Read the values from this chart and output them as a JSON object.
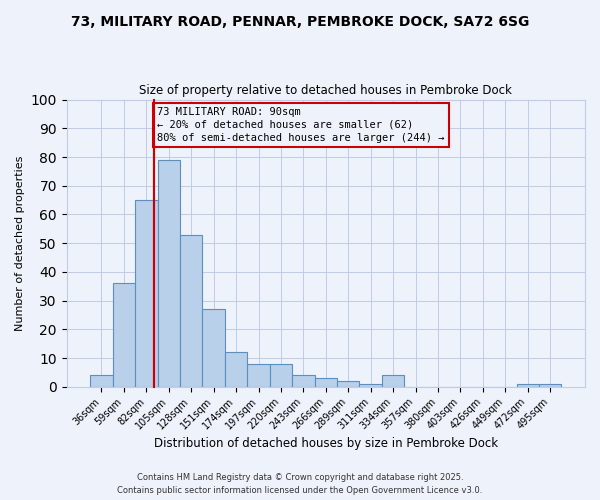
{
  "title1": "73, MILITARY ROAD, PENNAR, PEMBROKE DOCK, SA72 6SG",
  "title2": "Size of property relative to detached houses in Pembroke Dock",
  "xlabel": "Distribution of detached houses by size in Pembroke Dock",
  "ylabel": "Number of detached properties",
  "footer": "Contains HM Land Registry data © Crown copyright and database right 2025.\nContains public sector information licensed under the Open Government Licence v3.0.",
  "categories": [
    "36sqm",
    "59sqm",
    "82sqm",
    "105sqm",
    "128sqm",
    "151sqm",
    "174sqm",
    "197sqm",
    "220sqm",
    "243sqm",
    "266sqm",
    "289sqm",
    "311sqm",
    "334sqm",
    "357sqm",
    "380sqm",
    "403sqm",
    "426sqm",
    "449sqm",
    "472sqm",
    "495sqm"
  ],
  "values": [
    4,
    36,
    65,
    79,
    53,
    27,
    12,
    8,
    8,
    4,
    3,
    2,
    1,
    4,
    0,
    0,
    0,
    0,
    0,
    1,
    1
  ],
  "bar_color": "#b8d0ea",
  "bar_edge_color": "#5a8fc0",
  "annotation_box_edge_color": "#cc0000",
  "annotation_line_color": "#cc0000",
  "annotation_text": "73 MILITARY ROAD: 90sqm\n← 20% of detached houses are smaller (62)\n80% of semi-detached houses are larger (244) →",
  "ylim_max": 100,
  "background_color": "#eef2fb",
  "grid_color": "#c0cce8",
  "title1_fontsize": 10,
  "title2_fontsize": 8.5,
  "ylabel_fontsize": 8,
  "xlabel_fontsize": 8.5,
  "tick_fontsize": 7,
  "footer_fontsize": 6,
  "annot_fontsize": 7.5
}
